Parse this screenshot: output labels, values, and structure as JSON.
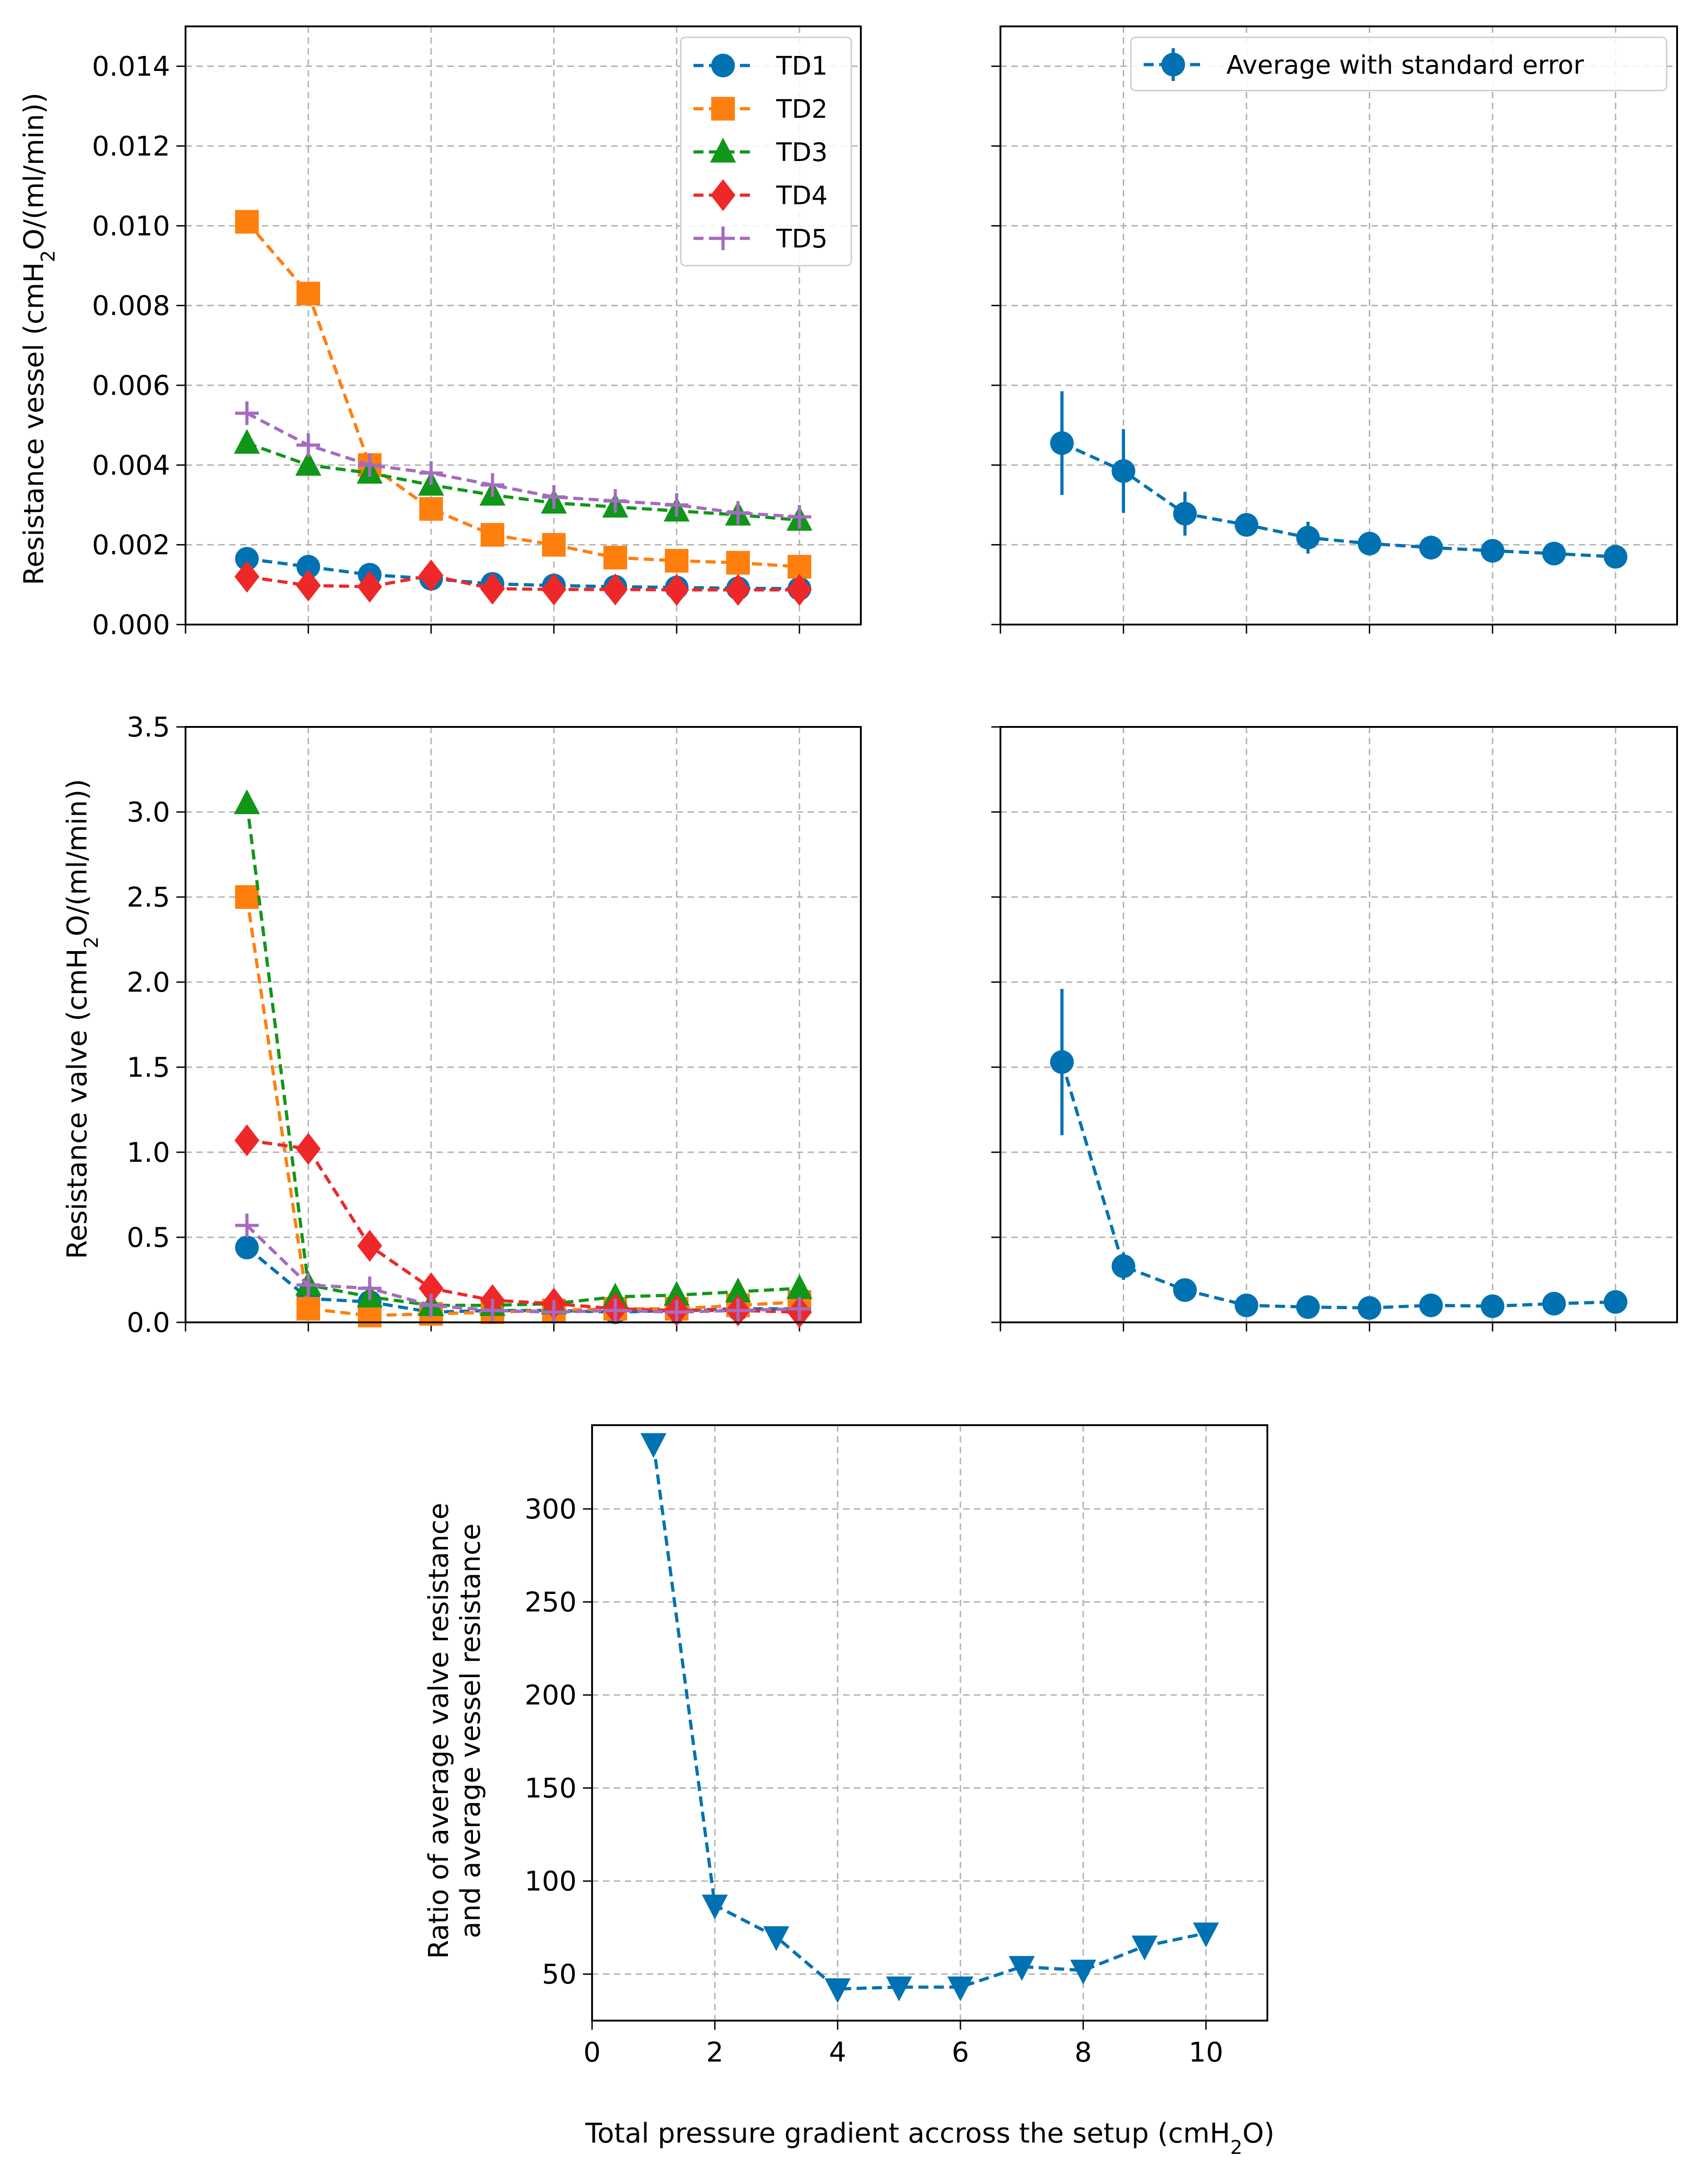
{
  "colors": {
    "td1": "#0072b2",
    "td2": "#ff7f0e",
    "td3": "#109618",
    "td4": "#ee2828",
    "td5": "#a66bc0",
    "avg": "#0072b2"
  },
  "labels": {
    "vessel_ylabel_pre": "Resistance vessel (cmH",
    "valve_ylabel_pre": "Resistance valve (cmH",
    "ylabel_sub": "2",
    "ylabel_post": "O/(ml/min))",
    "ratio_ylabel_line1": "Ratio of average valve resistance",
    "ratio_ylabel_line2": "and average vessel resistance",
    "xlabel_pre": "Total pressure gradient accross the setup (cmH",
    "xlabel_sub": "2",
    "xlabel_post": "O)"
  },
  "chart_data": [
    {
      "id": "vessel",
      "type": "line",
      "x": [
        1,
        2,
        3,
        4,
        5,
        6,
        7,
        8,
        9,
        10
      ],
      "xlim": [
        0,
        11
      ],
      "ylim": [
        0,
        0.015
      ],
      "yticks": [
        "0.000",
        "0.002",
        "0.004",
        "0.006",
        "0.008",
        "0.010",
        "0.012",
        "0.014"
      ],
      "ytick_values": [
        0,
        0.002,
        0.004,
        0.006,
        0.008,
        0.01,
        0.012,
        0.014
      ],
      "grid": true,
      "legend": "top-right",
      "series": [
        {
          "name": "TD1",
          "marker": "circle",
          "color_key": "td1",
          "values": [
            0.00165,
            0.00145,
            0.00125,
            0.00115,
            0.00102,
            0.00098,
            0.00095,
            0.00093,
            0.00091,
            0.0009
          ]
        },
        {
          "name": "TD2",
          "marker": "square",
          "color_key": "td2",
          "values": [
            0.0101,
            0.0083,
            0.004,
            0.0029,
            0.00225,
            0.002,
            0.00168,
            0.0016,
            0.00155,
            0.00145
          ]
        },
        {
          "name": "TD3",
          "marker": "triangle-up",
          "color_key": "td3",
          "values": [
            0.00455,
            0.004,
            0.0038,
            0.0035,
            0.00325,
            0.00305,
            0.00295,
            0.00285,
            0.00275,
            0.00262
          ]
        },
        {
          "name": "TD4",
          "marker": "diamond",
          "color_key": "td4",
          "values": [
            0.0012,
            0.00098,
            0.00095,
            0.00123,
            0.0009,
            0.00088,
            0.00088,
            0.00087,
            0.00087,
            0.00087
          ]
        },
        {
          "name": "TD5",
          "marker": "plus",
          "color_key": "td5",
          "values": [
            0.0053,
            0.0045,
            0.004,
            0.0038,
            0.0035,
            0.0032,
            0.0031,
            0.003,
            0.0028,
            0.0027
          ]
        }
      ]
    },
    {
      "id": "vessel_avg",
      "type": "line",
      "x": [
        1,
        2,
        3,
        4,
        5,
        6,
        7,
        8,
        9,
        10
      ],
      "xlim": [
        0,
        11
      ],
      "ylim": [
        0,
        0.015
      ],
      "grid": true,
      "legend": "top-right",
      "series": [
        {
          "name": "Average with standard error",
          "marker": "circle",
          "color_key": "avg",
          "values": [
            0.00455,
            0.00385,
            0.00278,
            0.0025,
            0.00218,
            0.00203,
            0.00193,
            0.00185,
            0.00178,
            0.0017
          ],
          "errors": [
            0.0013,
            0.00105,
            0.00055,
            0.00025,
            0.0004,
            0.00025,
            0.0003,
            0.00025,
            0.0002,
            0.00015
          ]
        }
      ]
    },
    {
      "id": "valve",
      "type": "line",
      "x": [
        1,
        2,
        3,
        4,
        5,
        6,
        7,
        8,
        9,
        10
      ],
      "xlim": [
        0,
        11
      ],
      "ylim": [
        0,
        3.5
      ],
      "yticks": [
        "0.0",
        "0.5",
        "1.0",
        "1.5",
        "2.0",
        "2.5",
        "3.0",
        "3.5"
      ],
      "ytick_values": [
        0,
        0.5,
        1.0,
        1.5,
        2.0,
        2.5,
        3.0,
        3.5
      ],
      "grid": true,
      "series": [
        {
          "name": "TD1",
          "marker": "circle",
          "color_key": "td1",
          "values": [
            0.44,
            0.14,
            0.12,
            0.06,
            0.07,
            0.07,
            0.06,
            0.07,
            0.08,
            0.08
          ]
        },
        {
          "name": "TD2",
          "marker": "square",
          "color_key": "td2",
          "values": [
            2.5,
            0.08,
            0.04,
            0.05,
            0.06,
            0.07,
            0.08,
            0.08,
            0.1,
            0.12
          ]
        },
        {
          "name": "TD3",
          "marker": "triangle-up",
          "color_key": "td3",
          "values": [
            3.05,
            0.22,
            0.15,
            0.1,
            0.1,
            0.11,
            0.15,
            0.16,
            0.18,
            0.2
          ]
        },
        {
          "name": "TD4",
          "marker": "diamond",
          "color_key": "td4",
          "values": [
            1.07,
            1.02,
            0.45,
            0.2,
            0.13,
            0.11,
            0.08,
            0.07,
            0.07,
            0.06
          ]
        },
        {
          "name": "TD5",
          "marker": "plus",
          "color_key": "td5",
          "values": [
            0.57,
            0.22,
            0.2,
            0.1,
            0.07,
            0.06,
            0.07,
            0.06,
            0.07,
            0.08
          ]
        }
      ]
    },
    {
      "id": "valve_avg",
      "type": "line",
      "x": [
        1,
        2,
        3,
        4,
        5,
        6,
        7,
        8,
        9,
        10
      ],
      "xlim": [
        0,
        11
      ],
      "ylim": [
        0,
        3.5
      ],
      "grid": true,
      "series": [
        {
          "name": "Average with standard error",
          "marker": "circle",
          "color_key": "avg",
          "values": [
            1.53,
            0.33,
            0.19,
            0.1,
            0.09,
            0.085,
            0.1,
            0.095,
            0.11,
            0.12
          ],
          "errors": [
            0.43,
            0.08,
            0.03,
            0.02,
            0.01,
            0.01,
            0.01,
            0.01,
            0.01,
            0.01
          ]
        }
      ]
    },
    {
      "id": "ratio",
      "type": "line",
      "x": [
        1,
        2,
        3,
        4,
        5,
        6,
        7,
        8,
        9,
        10
      ],
      "xlim": [
        0,
        11
      ],
      "ylim": [
        25,
        345
      ],
      "xticks": [
        "0",
        "2",
        "4",
        "6",
        "8",
        "10"
      ],
      "xtick_values": [
        0,
        2,
        4,
        6,
        8,
        10
      ],
      "yticks": [
        "50",
        "100",
        "150",
        "200",
        "250",
        "300"
      ],
      "ytick_values": [
        50,
        100,
        150,
        200,
        250,
        300
      ],
      "grid": true,
      "series": [
        {
          "name": "Ratio",
          "marker": "triangle-down",
          "color_key": "avg",
          "values": [
            335,
            87,
            70,
            42,
            43,
            43,
            54,
            52,
            65,
            72
          ]
        }
      ]
    }
  ]
}
